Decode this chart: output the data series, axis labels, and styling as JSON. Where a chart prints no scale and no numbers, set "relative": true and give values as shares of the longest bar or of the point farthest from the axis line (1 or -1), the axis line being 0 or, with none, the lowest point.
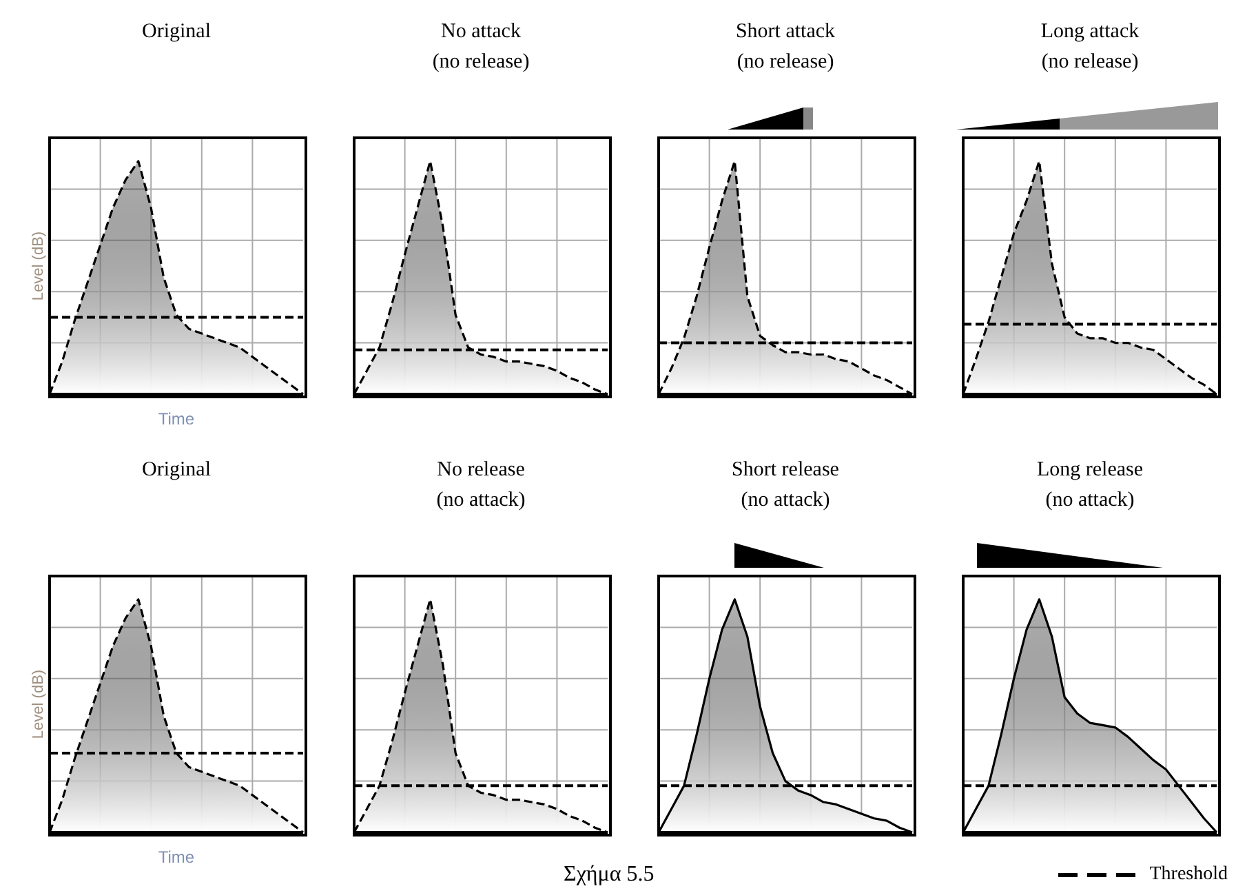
{
  "chart_data": [
    {
      "type": "area",
      "title": "Original",
      "xlabel": "Time",
      "ylabel": "Level (dB)",
      "relative": true,
      "grid": true,
      "legend": false,
      "categories": [
        null,
        null,
        null,
        null,
        null,
        null,
        null,
        null,
        null,
        null,
        null,
        null,
        null,
        null,
        null,
        null,
        null,
        null,
        null,
        null,
        null
      ],
      "series": [
        {
          "color": "#000000",
          "line_style": "dashed",
          "values": [
            0,
            0.14,
            0.32,
            0.48,
            0.64,
            0.8,
            0.92,
            1,
            0.8,
            0.5,
            0.34,
            0.28,
            0.26,
            0.24,
            0.22,
            0.2,
            0.16,
            0.12,
            0.08,
            0.04,
            0
          ]
        }
      ],
      "ref_lines": [
        {
          "axis": "y",
          "value": 0.33,
          "color": "#000000",
          "line_style": "dashed"
        }
      ]
    },
    {
      "type": "area",
      "title": "No attack",
      "subtitle": "(no release)",
      "relative": true,
      "grid": true,
      "legend": false,
      "categories": [
        null,
        null,
        null,
        null,
        null,
        null,
        null,
        null,
        null,
        null,
        null,
        null,
        null,
        null,
        null,
        null,
        null,
        null,
        null,
        null,
        null
      ],
      "series": [
        {
          "color": "#000000",
          "line_style": "dashed",
          "values": [
            0,
            0.1,
            0.2,
            0.39,
            0.6,
            0.8,
            1,
            0.72,
            0.34,
            0.2,
            0.17,
            0.16,
            0.14,
            0.14,
            0.13,
            0.12,
            0.1,
            0.07,
            0.05,
            0.02,
            0
          ]
        }
      ],
      "ref_lines": [
        {
          "axis": "y",
          "value": 0.19,
          "color": "#000000",
          "line_style": "dashed"
        }
      ]
    },
    {
      "type": "area",
      "title": "Short attack",
      "subtitle": "(no release)",
      "relative": true,
      "grid": true,
      "legend": false,
      "categories": [
        null,
        null,
        null,
        null,
        null,
        null,
        null,
        null,
        null,
        null,
        null,
        null,
        null,
        null,
        null,
        null,
        null,
        null,
        null,
        null,
        null
      ],
      "series": [
        {
          "color": "#000000",
          "line_style": "dashed",
          "values": [
            0,
            0.11,
            0.24,
            0.42,
            0.63,
            0.83,
            1,
            0.42,
            0.25,
            0.21,
            0.18,
            0.18,
            0.17,
            0.17,
            0.15,
            0.14,
            0.11,
            0.08,
            0.06,
            0.03,
            0
          ]
        }
      ],
      "ref_lines": [
        {
          "axis": "y",
          "value": 0.22,
          "color": "#000000",
          "line_style": "dashed"
        }
      ]
    },
    {
      "type": "area",
      "title": "Long attack",
      "subtitle": "(no release)",
      "relative": true,
      "grid": true,
      "legend": false,
      "categories": [
        null,
        null,
        null,
        null,
        null,
        null,
        null,
        null,
        null,
        null,
        null,
        null,
        null,
        null,
        null,
        null,
        null,
        null,
        null,
        null,
        null
      ],
      "series": [
        {
          "color": "#000000",
          "line_style": "dashed",
          "values": [
            0,
            0.15,
            0.31,
            0.5,
            0.69,
            0.83,
            1,
            0.56,
            0.33,
            0.26,
            0.24,
            0.24,
            0.22,
            0.22,
            0.2,
            0.19,
            0.15,
            0.11,
            0.07,
            0.04,
            0
          ]
        }
      ],
      "ref_lines": [
        {
          "axis": "y",
          "value": 0.3,
          "color": "#000000",
          "line_style": "dashed"
        }
      ]
    },
    {
      "type": "area",
      "title": "Original",
      "xlabel": "Time",
      "ylabel": "Level (dB)",
      "relative": true,
      "grid": true,
      "legend": false,
      "categories": [
        null,
        null,
        null,
        null,
        null,
        null,
        null,
        null,
        null,
        null,
        null,
        null,
        null,
        null,
        null,
        null,
        null,
        null,
        null,
        null,
        null
      ],
      "series": [
        {
          "color": "#000000",
          "line_style": "dashed",
          "values": [
            0,
            0.14,
            0.32,
            0.48,
            0.64,
            0.8,
            0.92,
            1,
            0.8,
            0.5,
            0.34,
            0.28,
            0.26,
            0.24,
            0.22,
            0.2,
            0.16,
            0.12,
            0.08,
            0.04,
            0
          ]
        }
      ],
      "ref_lines": [
        {
          "axis": "y",
          "value": 0.34,
          "color": "#000000",
          "line_style": "dashed"
        }
      ]
    },
    {
      "type": "area",
      "title": "No release",
      "subtitle": "(no attack)",
      "relative": true,
      "grid": true,
      "legend": false,
      "annotations": [
        "Σχήμα 5.5"
      ],
      "categories": [
        null,
        null,
        null,
        null,
        null,
        null,
        null,
        null,
        null,
        null,
        null,
        null,
        null,
        null,
        null,
        null,
        null,
        null,
        null,
        null,
        null
      ],
      "series": [
        {
          "color": "#000000",
          "line_style": "dashed",
          "values": [
            0,
            0.1,
            0.2,
            0.39,
            0.6,
            0.8,
            1,
            0.72,
            0.34,
            0.2,
            0.17,
            0.16,
            0.14,
            0.14,
            0.13,
            0.12,
            0.1,
            0.07,
            0.05,
            0.02,
            0
          ]
        }
      ],
      "ref_lines": [
        {
          "axis": "y",
          "value": 0.2,
          "color": "#000000",
          "line_style": "dashed"
        }
      ]
    },
    {
      "type": "area",
      "title": "Short release",
      "subtitle": "(no attack)",
      "relative": true,
      "grid": true,
      "legend": false,
      "categories": [
        null,
        null,
        null,
        null,
        null,
        null,
        null,
        null,
        null,
        null,
        null,
        null,
        null,
        null,
        null,
        null,
        null,
        null,
        null,
        null,
        null
      ],
      "series": [
        {
          "color": "#000000",
          "line_style": "solid",
          "values": [
            0,
            0.1,
            0.2,
            0.42,
            0.66,
            0.87,
            1,
            0.84,
            0.54,
            0.34,
            0.22,
            0.18,
            0.16,
            0.13,
            0.12,
            0.1,
            0.08,
            0.06,
            0.05,
            0.02,
            0
          ]
        }
      ],
      "ref_lines": [
        {
          "axis": "y",
          "value": 0.2,
          "color": "#000000",
          "line_style": "dashed"
        }
      ]
    },
    {
      "type": "area",
      "title": "Long release",
      "subtitle": "(no attack)",
      "relative": true,
      "grid": true,
      "legend": "bottom right",
      "categories": [
        null,
        null,
        null,
        null,
        null,
        null,
        null,
        null,
        null,
        null,
        null,
        null,
        null,
        null,
        null,
        null,
        null,
        null,
        null,
        null,
        null
      ],
      "series": [
        {
          "color": "#000000",
          "line_style": "solid",
          "values": [
            0,
            0.1,
            0.2,
            0.42,
            0.66,
            0.87,
            1,
            0.84,
            0.58,
            0.51,
            0.47,
            0.46,
            0.45,
            0.41,
            0.36,
            0.31,
            0.27,
            0.2,
            0.13,
            0.06,
            0
          ]
        }
      ],
      "ref_lines": [
        {
          "axis": "y",
          "value": 0.2,
          "color": "#000000",
          "line_style": "dashed",
          "label": "Threshold"
        }
      ]
    }
  ]
}
